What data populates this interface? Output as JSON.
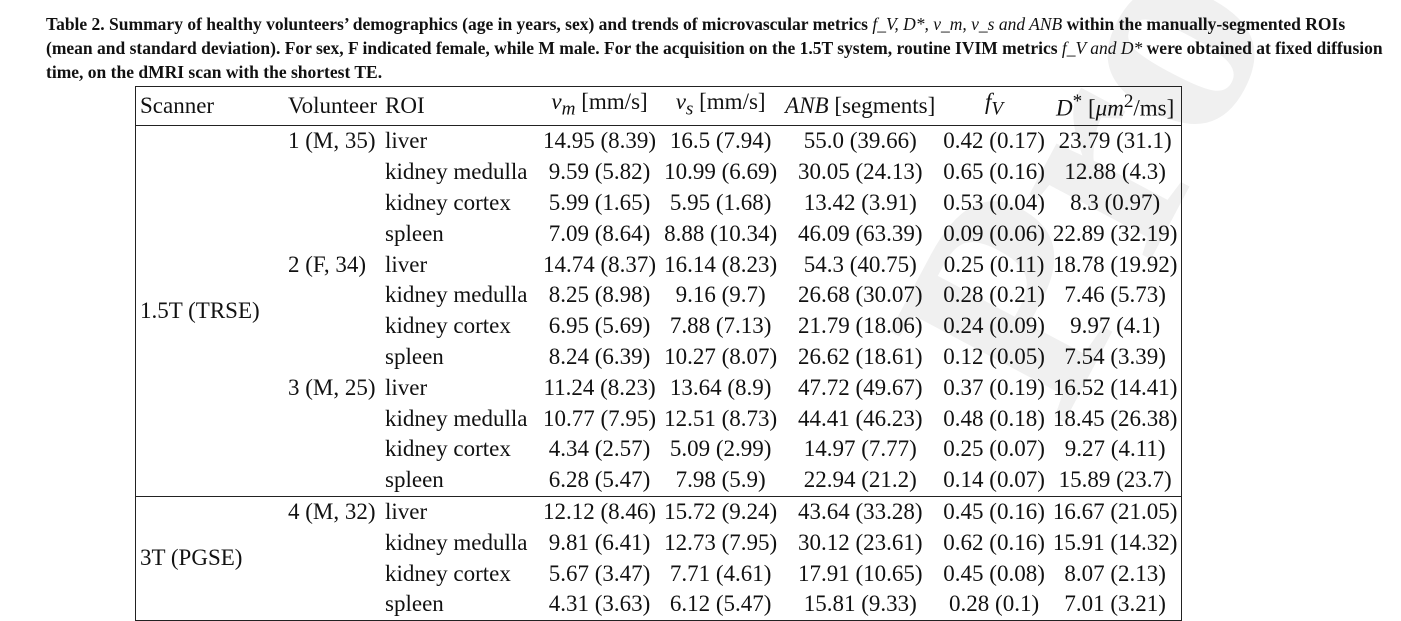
{
  "caption": {
    "prefix": "Table 2. Summary of healthy volunteers’ demographics (age in years, sex) and trends of microvascular metrics ",
    "metrics_inline": "f_V, D*, v_m, v_s and ANB",
    "rest_line1": " within the manually-segmented ROIs (mean and standard deviation). For sex, F indicated female, while M male. For the acquisition on the 1.5T system, routine IVIM metrics ",
    "metrics_inline2": "f_V and D*",
    "rest_line2": " were obtained at fixed diffusion time, on the dMRI scan with the shortest TE."
  },
  "watermark": "Proof",
  "table": {
    "headers": {
      "scanner": "Scanner",
      "volunteer": "Volunteer",
      "roi": "ROI",
      "vm": "v",
      "vm_sub": "m",
      "vm_unit": " [mm/s]",
      "vs": "v",
      "vs_sub": "s",
      "vs_unit": " [mm/s]",
      "anb": "ANB",
      "anb_unit": " [segments]",
      "fv": "f",
      "fv_sub": "V",
      "dstar": "D",
      "dstar_sup": "*",
      "dstar_unit_pre": " [",
      "dstar_unit_mu": "μm",
      "dstar_unit_sup": "2",
      "dstar_unit_post": "/ms]"
    },
    "groups": [
      {
        "scanner": "1.5T (TRSE)",
        "volunteers": [
          {
            "label": "1 (M, 35)",
            "rows": [
              {
                "roi": "liver",
                "vm": "14.95 (8.39)",
                "vs": "16.5 (7.94)",
                "anb": "55.0 (39.66)",
                "fv": "0.42 (0.17)",
                "dstar": "23.79 (31.1)"
              },
              {
                "roi": "kidney medulla",
                "vm": "9.59 (5.82)",
                "vs": "10.99 (6.69)",
                "anb": "30.05 (24.13)",
                "fv": "0.65 (0.16)",
                "dstar": "12.88 (4.3)"
              },
              {
                "roi": "kidney cortex",
                "vm": "5.99 (1.65)",
                "vs": "5.95 (1.68)",
                "anb": "13.42 (3.91)",
                "fv": "0.53 (0.04)",
                "dstar": "8.3 (0.97)"
              },
              {
                "roi": "spleen",
                "vm": "7.09 (8.64)",
                "vs": "8.88 (10.34)",
                "anb": "46.09 (63.39)",
                "fv": "0.09 (0.06)",
                "dstar": "22.89 (32.19)"
              }
            ]
          },
          {
            "label": "2 (F, 34)",
            "rows": [
              {
                "roi": "liver",
                "vm": "14.74 (8.37)",
                "vs": "16.14 (8.23)",
                "anb": "54.3 (40.75)",
                "fv": "0.25 (0.11)",
                "dstar": "18.78 (19.92)"
              },
              {
                "roi": "kidney medulla",
                "vm": "8.25 (8.98)",
                "vs": "9.16 (9.7)",
                "anb": "26.68 (30.07)",
                "fv": "0.28 (0.21)",
                "dstar": "7.46 (5.73)"
              },
              {
                "roi": "kidney cortex",
                "vm": "6.95 (5.69)",
                "vs": "7.88 (7.13)",
                "anb": "21.79 (18.06)",
                "fv": "0.24 (0.09)",
                "dstar": "9.97 (4.1)"
              },
              {
                "roi": "spleen",
                "vm": "8.24 (6.39)",
                "vs": "10.27 (8.07)",
                "anb": "26.62 (18.61)",
                "fv": "0.12 (0.05)",
                "dstar": "7.54 (3.39)"
              }
            ]
          },
          {
            "label": "3 (M, 25)",
            "rows": [
              {
                "roi": "liver",
                "vm": "11.24 (8.23)",
                "vs": "13.64 (8.9)",
                "anb": "47.72 (49.67)",
                "fv": "0.37 (0.19)",
                "dstar": "16.52 (14.41)"
              },
              {
                "roi": "kidney medulla",
                "vm": "10.77 (7.95)",
                "vs": "12.51 (8.73)",
                "anb": "44.41 (46.23)",
                "fv": "0.48 (0.18)",
                "dstar": "18.45 (26.38)"
              },
              {
                "roi": "kidney cortex",
                "vm": "4.34 (2.57)",
                "vs": "5.09 (2.99)",
                "anb": "14.97 (7.77)",
                "fv": "0.25 (0.07)",
                "dstar": "9.27 (4.11)"
              },
              {
                "roi": "spleen",
                "vm": "6.28 (5.47)",
                "vs": "7.98 (5.9)",
                "anb": "22.94 (21.2)",
                "fv": "0.14 (0.07)",
                "dstar": "15.89 (23.7)"
              }
            ]
          }
        ]
      },
      {
        "scanner": "3T (PGSE)",
        "volunteers": [
          {
            "label": "4 (M, 32)",
            "rows": [
              {
                "roi": "liver",
                "vm": "12.12 (8.46)",
                "vs": "15.72 (9.24)",
                "anb": "43.64 (33.28)",
                "fv": "0.45 (0.16)",
                "dstar": "16.67 (21.05)"
              },
              {
                "roi": "kidney medulla",
                "vm": "9.81 (6.41)",
                "vs": "12.73 (7.95)",
                "anb": "30.12 (23.61)",
                "fv": "0.62 (0.16)",
                "dstar": "15.91 (14.32)"
              },
              {
                "roi": "kidney cortex",
                "vm": "5.67 (3.47)",
                "vs": "7.71 (4.61)",
                "anb": "17.91 (10.65)",
                "fv": "0.45 (0.08)",
                "dstar": "8.07 (2.13)"
              },
              {
                "roi": "spleen",
                "vm": "4.31 (3.63)",
                "vs": "6.12 (5.47)",
                "anb": "15.81 (9.33)",
                "fv": "0.28 (0.1)",
                "dstar": "7.01 (3.21)"
              }
            ]
          }
        ]
      }
    ]
  }
}
